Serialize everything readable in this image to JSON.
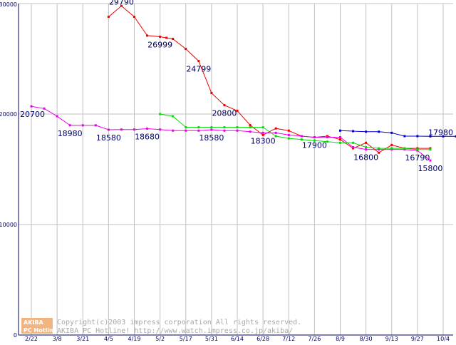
{
  "chart_data": {
    "type": "line",
    "title": "",
    "xlabel": "",
    "ylabel": "",
    "ylim": [
      0,
      30000
    ],
    "grid": true,
    "y_ticks": [
      "30000",
      "20000",
      "10000",
      "0"
    ],
    "y_tick_values": [
      30000,
      20000,
      10000,
      0
    ],
    "categories": [
      "2/22",
      "3/8",
      "3/21",
      "4/5",
      "4/19",
      "5/2",
      "5/17",
      "5/31",
      "6/14",
      "6/28",
      "7/12",
      "7/26",
      "8/9",
      "8/30",
      "9/13",
      "9/27",
      "10/4"
    ],
    "colors": {
      "red": "#ee0000",
      "magenta": "#ee00ee",
      "green": "#00dd00",
      "blue": "#0000cc",
      "grid": "#c0c0c0",
      "axis": "#000066"
    },
    "series": [
      {
        "name": "red",
        "color": "#ee0000",
        "points": [
          [
            3.0,
            28800
          ],
          [
            3.5,
            29790
          ],
          [
            4.0,
            28800
          ],
          [
            4.5,
            27100
          ],
          [
            5.0,
            26999
          ],
          [
            5.25,
            26900
          ],
          [
            5.5,
            26800
          ],
          [
            6.0,
            25900
          ],
          [
            6.5,
            24799
          ],
          [
            7.0,
            21900
          ],
          [
            7.5,
            20800
          ],
          [
            8.0,
            20300
          ],
          [
            8.5,
            19000
          ],
          [
            9.0,
            18100
          ],
          [
            9.5,
            18700
          ],
          [
            10.0,
            18500
          ],
          [
            10.5,
            18000
          ],
          [
            11.0,
            17900
          ],
          [
            11.5,
            18000
          ],
          [
            12.0,
            17700
          ],
          [
            12.5,
            16900
          ],
          [
            13.0,
            17400
          ],
          [
            13.5,
            16500
          ],
          [
            14.0,
            17200
          ],
          [
            14.5,
            16900
          ],
          [
            15.0,
            16900
          ],
          [
            15.5,
            16900
          ]
        ]
      },
      {
        "name": "magenta",
        "color": "#ee00ee",
        "points": [
          [
            0.0,
            20700
          ],
          [
            0.5,
            20500
          ],
          [
            1.0,
            19800
          ],
          [
            1.5,
            18980
          ],
          [
            2.0,
            18980
          ],
          [
            2.5,
            18980
          ],
          [
            3.0,
            18580
          ],
          [
            3.5,
            18600
          ],
          [
            4.0,
            18600
          ],
          [
            4.5,
            18680
          ],
          [
            5.0,
            18600
          ],
          [
            5.5,
            18500
          ],
          [
            6.0,
            18500
          ],
          [
            6.5,
            18500
          ],
          [
            7.0,
            18580
          ],
          [
            7.5,
            18500
          ],
          [
            8.0,
            18500
          ],
          [
            8.5,
            18400
          ],
          [
            9.0,
            18300
          ],
          [
            9.5,
            18300
          ],
          [
            10.0,
            18100
          ],
          [
            10.5,
            18000
          ],
          [
            11.0,
            17900
          ],
          [
            11.5,
            17900
          ],
          [
            12.0,
            17900
          ],
          [
            12.5,
            17000
          ],
          [
            13.0,
            16800
          ],
          [
            13.5,
            16800
          ],
          [
            14.0,
            16800
          ],
          [
            14.5,
            16800
          ],
          [
            15.0,
            16700
          ],
          [
            15.5,
            15800
          ]
        ]
      },
      {
        "name": "green",
        "color": "#00dd00",
        "points": [
          [
            5.0,
            20000
          ],
          [
            5.5,
            19800
          ],
          [
            6.0,
            18800
          ],
          [
            6.5,
            18800
          ],
          [
            7.0,
            18800
          ],
          [
            7.5,
            18800
          ],
          [
            8.0,
            18800
          ],
          [
            8.5,
            18800
          ],
          [
            9.0,
            18800
          ],
          [
            9.5,
            18000
          ],
          [
            10.0,
            17800
          ],
          [
            10.5,
            17700
          ],
          [
            11.0,
            17600
          ],
          [
            11.5,
            17500
          ],
          [
            12.0,
            17400
          ],
          [
            12.5,
            17400
          ],
          [
            13.0,
            17000
          ],
          [
            13.5,
            16900
          ],
          [
            14.0,
            16900
          ],
          [
            14.5,
            16900
          ],
          [
            15.0,
            16790
          ],
          [
            15.5,
            16790
          ]
        ]
      },
      {
        "name": "blue",
        "color": "#0000cc",
        "points": [
          [
            12.0,
            18500
          ],
          [
            12.5,
            18450
          ],
          [
            13.0,
            18400
          ],
          [
            13.5,
            18400
          ],
          [
            14.0,
            18300
          ],
          [
            14.5,
            18000
          ],
          [
            15.0,
            18000
          ],
          [
            15.5,
            17980
          ],
          [
            16.0,
            17980
          ],
          [
            16.5,
            17980
          ]
        ]
      }
    ],
    "annotations": [
      {
        "text": "29790",
        "x": 3.5,
        "y": 29790,
        "pos": "above"
      },
      {
        "text": "26999",
        "x": 5.0,
        "y": 26999,
        "pos": "below"
      },
      {
        "text": "24799",
        "x": 6.5,
        "y": 24799,
        "pos": "below"
      },
      {
        "text": "20800",
        "x": 7.5,
        "y": 20800,
        "pos": "below"
      },
      {
        "text": "20700",
        "x": 0.0,
        "y": 20700,
        "pos": "below"
      },
      {
        "text": "18980",
        "x": 1.5,
        "y": 18980,
        "pos": "below"
      },
      {
        "text": "18580",
        "x": 3.0,
        "y": 18580,
        "pos": "below"
      },
      {
        "text": "18680",
        "x": 4.5,
        "y": 18680,
        "pos": "below"
      },
      {
        "text": "18580",
        "x": 7.0,
        "y": 18580,
        "pos": "below"
      },
      {
        "text": "18300",
        "x": 9.0,
        "y": 18300,
        "pos": "below"
      },
      {
        "text": "17900",
        "x": 11.0,
        "y": 17900,
        "pos": "below"
      },
      {
        "text": "16800",
        "x": 13.0,
        "y": 16800,
        "pos": "below"
      },
      {
        "text": "16790",
        "x": 15.0,
        "y": 16790,
        "pos": "below"
      },
      {
        "text": "17980",
        "x": 16.0,
        "y": 17980,
        "pos": "above"
      },
      {
        "text": "15800",
        "x": 15.5,
        "y": 15800,
        "pos": "below"
      }
    ],
    "credit": {
      "logo_top": "AKIBA",
      "logo_bottom": "PC Hotline",
      "line1": "Copyright(c)2003 impress corporation All rights reserved.",
      "line2": "AKIBA PC Hotline!  http://www.watch.impress.co.jp/akiba/"
    }
  }
}
